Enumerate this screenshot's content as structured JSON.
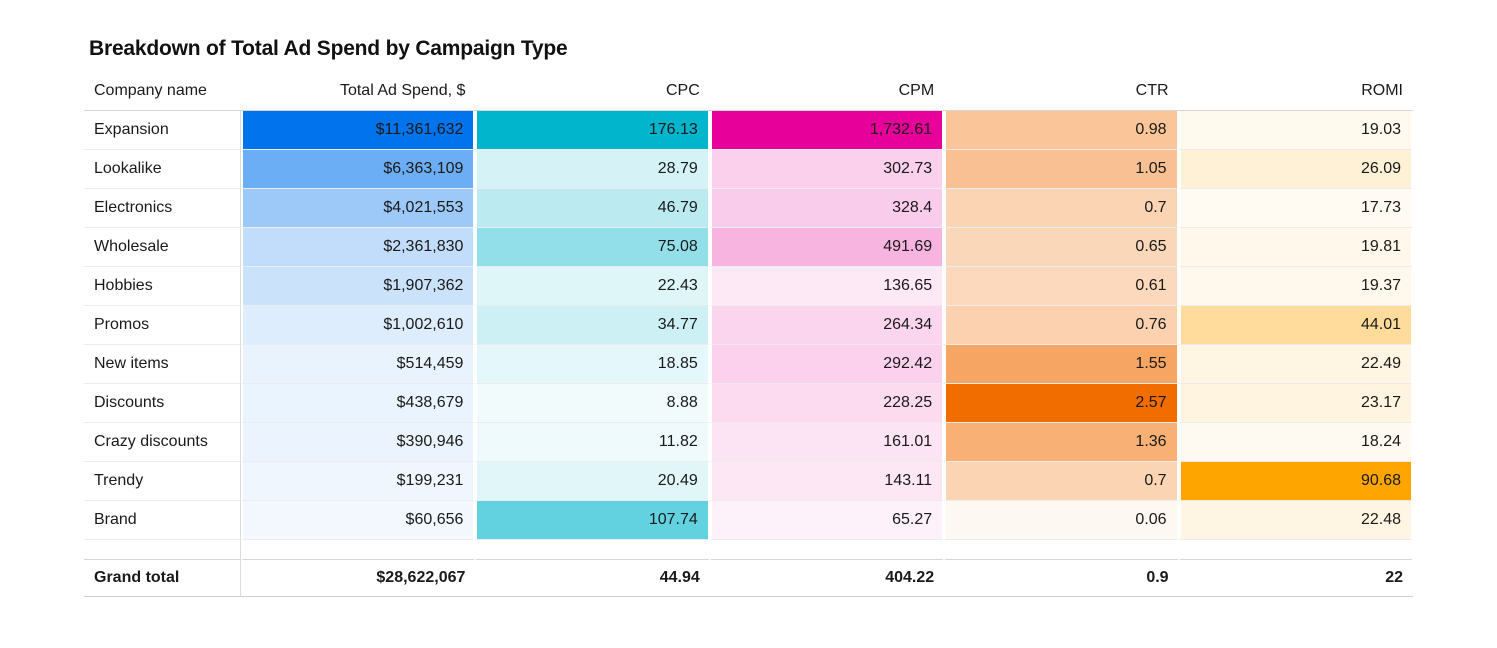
{
  "chart_data": {
    "type": "heatmap",
    "title": "Breakdown of Total Ad Spend by Campaign Type",
    "columns": [
      "Company name",
      "Total Ad Spend, $",
      "CPC",
      "CPM",
      "CTR",
      "ROMI"
    ],
    "rows": [
      {
        "name": "Expansion",
        "values": [
          11361632,
          176.13,
          1732.61,
          0.98,
          19.03
        ],
        "labels": [
          "$11,361,632",
          "176.13",
          "1,732.61",
          "0.98",
          "19.03"
        ]
      },
      {
        "name": "Lookalike",
        "values": [
          6363109,
          28.79,
          302.73,
          1.05,
          26.09
        ],
        "labels": [
          "$6,363,109",
          "28.79",
          "302.73",
          "1.05",
          "26.09"
        ]
      },
      {
        "name": "Electronics",
        "values": [
          4021553,
          46.79,
          328.4,
          0.7,
          17.73
        ],
        "labels": [
          "$4,021,553",
          "46.79",
          "328.4",
          "0.7",
          "17.73"
        ]
      },
      {
        "name": "Wholesale",
        "values": [
          2361830,
          75.08,
          491.69,
          0.65,
          19.81
        ],
        "labels": [
          "$2,361,830",
          "75.08",
          "491.69",
          "0.65",
          "19.81"
        ]
      },
      {
        "name": "Hobbies",
        "values": [
          1907362,
          22.43,
          136.65,
          0.61,
          19.37
        ],
        "labels": [
          "$1,907,362",
          "22.43",
          "136.65",
          "0.61",
          "19.37"
        ]
      },
      {
        "name": "Promos",
        "values": [
          1002610,
          34.77,
          264.34,
          0.76,
          44.01
        ],
        "labels": [
          "$1,002,610",
          "34.77",
          "264.34",
          "0.76",
          "44.01"
        ]
      },
      {
        "name": "New items",
        "values": [
          514459,
          18.85,
          292.42,
          1.55,
          22.49
        ],
        "labels": [
          "$514,459",
          "18.85",
          "292.42",
          "1.55",
          "22.49"
        ]
      },
      {
        "name": "Discounts",
        "values": [
          438679,
          8.88,
          228.25,
          2.57,
          23.17
        ],
        "labels": [
          "$438,679",
          "8.88",
          "228.25",
          "2.57",
          "23.17"
        ]
      },
      {
        "name": "Crazy discounts",
        "values": [
          390946,
          11.82,
          161.01,
          1.36,
          18.24
        ],
        "labels": [
          "$390,946",
          "11.82",
          "161.01",
          "1.36",
          "18.24"
        ]
      },
      {
        "name": "Trendy",
        "values": [
          199231,
          20.49,
          143.11,
          0.7,
          90.68
        ],
        "labels": [
          "$199,231",
          "20.49",
          "143.11",
          "0.7",
          "90.68"
        ]
      },
      {
        "name": "Brand",
        "values": [
          60656,
          107.74,
          65.27,
          0.06,
          22.48
        ],
        "labels": [
          "$60,656",
          "107.74",
          "65.27",
          "0.06",
          "22.48"
        ]
      }
    ],
    "totals": {
      "name": "Grand total",
      "labels": [
        "$28,622,067",
        "44.94",
        "404.22",
        "0.9",
        "22"
      ]
    },
    "column_colors": [
      "#0073ed",
      "#00b5cc",
      "#e8009a",
      "#f26d00",
      "#ffa500"
    ]
  }
}
